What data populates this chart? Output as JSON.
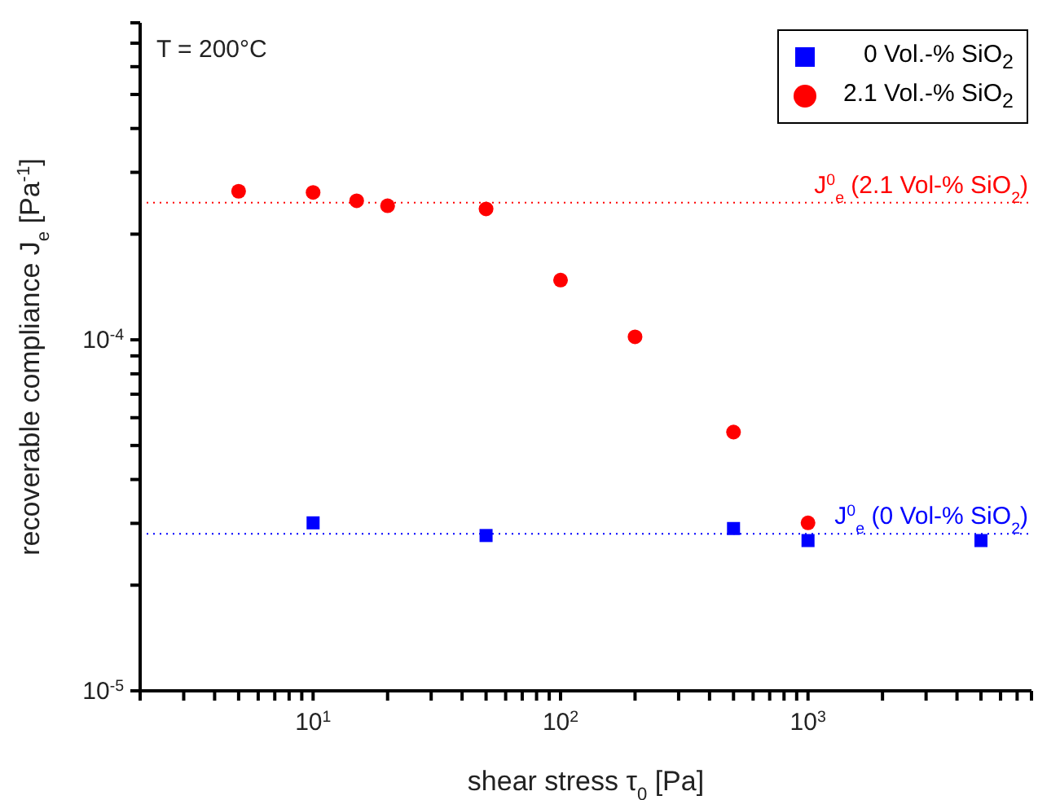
{
  "chart_data": {
    "type": "scatter",
    "xlabel": "shear stress τ$_{0}$ [Pa]",
    "ylabel": "recoverable compliance J$_{e}$ [Pa$^{-1}$]",
    "log": "xy",
    "xlim": [
      2,
      8000
    ],
    "ylim": [
      1e-05,
      0.0008
    ],
    "xticks": [
      {
        "value": 2,
        "label": null
      },
      {
        "value": 3,
        "label": null
      },
      {
        "value": 4,
        "label": null
      },
      {
        "value": 5,
        "label": null
      },
      {
        "value": 6,
        "label": null
      },
      {
        "value": 7,
        "label": null
      },
      {
        "value": 8,
        "label": null
      },
      {
        "value": 9,
        "label": null
      },
      {
        "value": 10,
        "label": "10$^{1}$"
      },
      {
        "value": 20,
        "label": null
      },
      {
        "value": 30,
        "label": null
      },
      {
        "value": 40,
        "label": null
      },
      {
        "value": 50,
        "label": null
      },
      {
        "value": 60,
        "label": null
      },
      {
        "value": 70,
        "label": null
      },
      {
        "value": 80,
        "label": null
      },
      {
        "value": 90,
        "label": null
      },
      {
        "value": 100,
        "label": "10$^{2}$"
      },
      {
        "value": 200,
        "label": null
      },
      {
        "value": 300,
        "label": null
      },
      {
        "value": 400,
        "label": null
      },
      {
        "value": 500,
        "label": null
      },
      {
        "value": 600,
        "label": null
      },
      {
        "value": 700,
        "label": null
      },
      {
        "value": 800,
        "label": null
      },
      {
        "value": 900,
        "label": null
      },
      {
        "value": 1000,
        "label": "10$^{3}$"
      },
      {
        "value": 2000,
        "label": null
      },
      {
        "value": 3000,
        "label": null
      },
      {
        "value": 4000,
        "label": null
      },
      {
        "value": 5000,
        "label": null
      },
      {
        "value": 6000,
        "label": null
      },
      {
        "value": 7000,
        "label": null
      },
      {
        "value": 8000,
        "label": null
      }
    ],
    "yticks": [
      {
        "value": 1e-05,
        "label": "10$^{-5}$"
      },
      {
        "value": 2e-05,
        "label": null
      },
      {
        "value": 3e-05,
        "label": null
      },
      {
        "value": 4e-05,
        "label": null
      },
      {
        "value": 5e-05,
        "label": null
      },
      {
        "value": 6e-05,
        "label": null
      },
      {
        "value": 7e-05,
        "label": null
      },
      {
        "value": 8e-05,
        "label": null
      },
      {
        "value": 9e-05,
        "label": null
      },
      {
        "value": 0.0001,
        "label": "10$^{-4}$"
      },
      {
        "value": 0.0002,
        "label": null
      },
      {
        "value": 0.0003,
        "label": null
      },
      {
        "value": 0.0004,
        "label": null
      },
      {
        "value": 0.0005,
        "label": null
      },
      {
        "value": 0.0006,
        "label": null
      },
      {
        "value": 0.0007,
        "label": null
      },
      {
        "value": 0.0008,
        "label": null
      }
    ],
    "series": [
      {
        "name": "0 Vol.-% SiO$_{2}$",
        "color": "#0000ff",
        "marker": "square",
        "x": [
          10,
          50,
          500,
          1000,
          5000
        ],
        "values": [
          3.01e-05,
          2.77e-05,
          2.9e-05,
          2.68e-05,
          2.68e-05
        ]
      },
      {
        "name": "2.1 Vol.-% SiO$_{2}$",
        "color": "#ff0000",
        "marker": "circle",
        "x": [
          5,
          10,
          15,
          20,
          50,
          100,
          200,
          500,
          1000
        ],
        "values": [
          0.000265,
          0.000263,
          0.000249,
          0.000241,
          0.000236,
          0.000148,
          0.000102,
          5.46e-05,
          3.01e-05
        ]
      }
    ],
    "ref_lines": [
      {
        "axis": "y",
        "value": 0.000246,
        "label": "J$^{0}$$_{e}$ (2.1 Vol-% SiO$_{2}$)",
        "color": "#ff0000",
        "line_style": "dotted"
      },
      {
        "axis": "y",
        "value": 2.8e-05,
        "label": "J$^{0}$$_{e}$ (0 Vol-% SiO$_{2}$)",
        "color": "#0000ff",
        "line_style": "dotted"
      }
    ],
    "annotations": [
      "T = 200°C"
    ],
    "legend": "top right",
    "grid": false
  }
}
